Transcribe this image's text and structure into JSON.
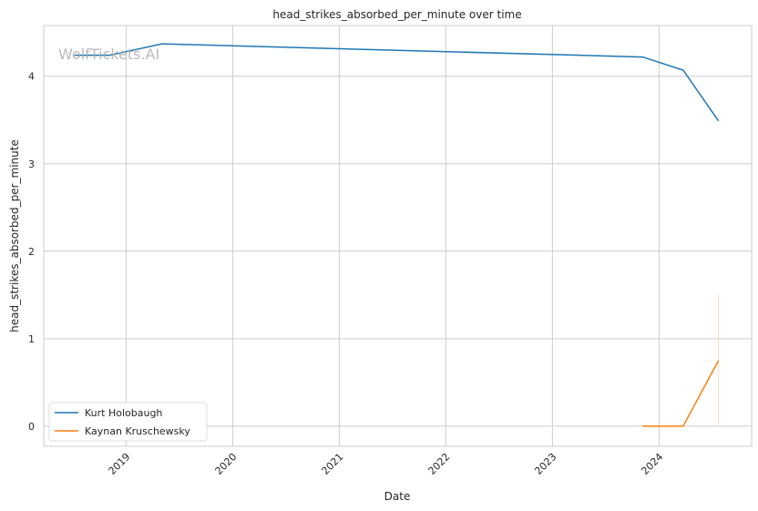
{
  "chart_data": {
    "type": "line",
    "title": "head_strikes_absorbed_per_minute over time",
    "xlabel": "Date",
    "ylabel": "head_strikes_absorbed_per_minute",
    "watermark": "WolfTickets.AI",
    "xlim": [
      "2018-03-25",
      "2024-11-14"
    ],
    "ylim": [
      -0.23,
      4.58
    ],
    "xticks": [
      "2019",
      "2020",
      "2021",
      "2022",
      "2023",
      "2024"
    ],
    "yticks": [
      0,
      1,
      2,
      3,
      4
    ],
    "grid": true,
    "legend_placement": "lower-left",
    "series": [
      {
        "name": "Kurt Holobaugh",
        "color": "#1f77b4",
        "x": [
          "2018-07-08",
          "2018-11-06",
          "2019-05-04",
          "2023-11-06",
          "2024-03-24",
          "2024-07-23"
        ],
        "y": [
          4.24,
          4.24,
          4.37,
          4.22,
          4.07,
          3.49
        ]
      },
      {
        "name": "Kaynan Kruschewsky",
        "color": "#ff7f0e",
        "x": [
          "2023-11-06",
          "2024-03-24",
          "2024-07-23"
        ],
        "y": [
          0,
          0,
          0.75
        ],
        "band": {
          "x": "2024-07-23",
          "low": 0,
          "high": 1.5
        }
      }
    ]
  }
}
